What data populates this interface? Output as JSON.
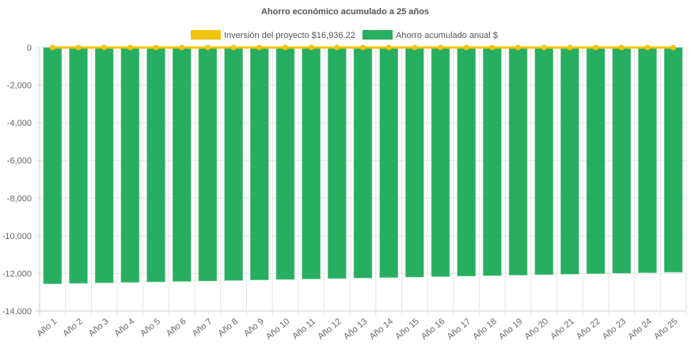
{
  "chart_data": {
    "type": "bar",
    "title": "Ahorro económico acumulado a 25 años",
    "categories": [
      "Año 1",
      "Año 2",
      "Año 3",
      "Año 4",
      "Año 5",
      "Año 6",
      "Año 7",
      "Año 8",
      "Año 9",
      "Año 10",
      "Año 11",
      "Año 12",
      "Año 13",
      "Año 14",
      "Año 15",
      "Año 16",
      "Año 17",
      "Año 18",
      "Año 19",
      "Año 20",
      "Año 21",
      "Año 22",
      "Año 23",
      "Año 24",
      "Año 25"
    ],
    "series": [
      {
        "name": "Inversión del proyecto $16,936.22",
        "type": "line",
        "color": "#f1c40f",
        "values": [
          0,
          0,
          0,
          0,
          0,
          0,
          0,
          0,
          0,
          0,
          0,
          0,
          0,
          0,
          0,
          0,
          0,
          0,
          0,
          0,
          0,
          0,
          0,
          0,
          0
        ]
      },
      {
        "name": "Ahorro acumulado anual $",
        "type": "bar",
        "color": "#27ae60",
        "values": [
          -12555,
          -12530,
          -12504,
          -12478,
          -12453,
          -12427,
          -12402,
          -12376,
          -12350,
          -12325,
          -12299,
          -12274,
          -12248,
          -12222,
          -12197,
          -12171,
          -12146,
          -12120,
          -12094,
          -12069,
          -12043,
          -12018,
          -11992,
          -11966,
          -11940
        ]
      }
    ],
    "ylim": [
      -14000,
      0
    ],
    "yticks": [
      0,
      -2000,
      -4000,
      -6000,
      -8000,
      -10000,
      -12000,
      -14000
    ],
    "ytick_labels": [
      "0",
      "-2,000",
      "-4,000",
      "-6,000",
      "-8,000",
      "-10,000",
      "-12,000",
      "-14,000"
    ],
    "grid": true,
    "legend": "top",
    "xlabel": "",
    "ylabel": ""
  }
}
